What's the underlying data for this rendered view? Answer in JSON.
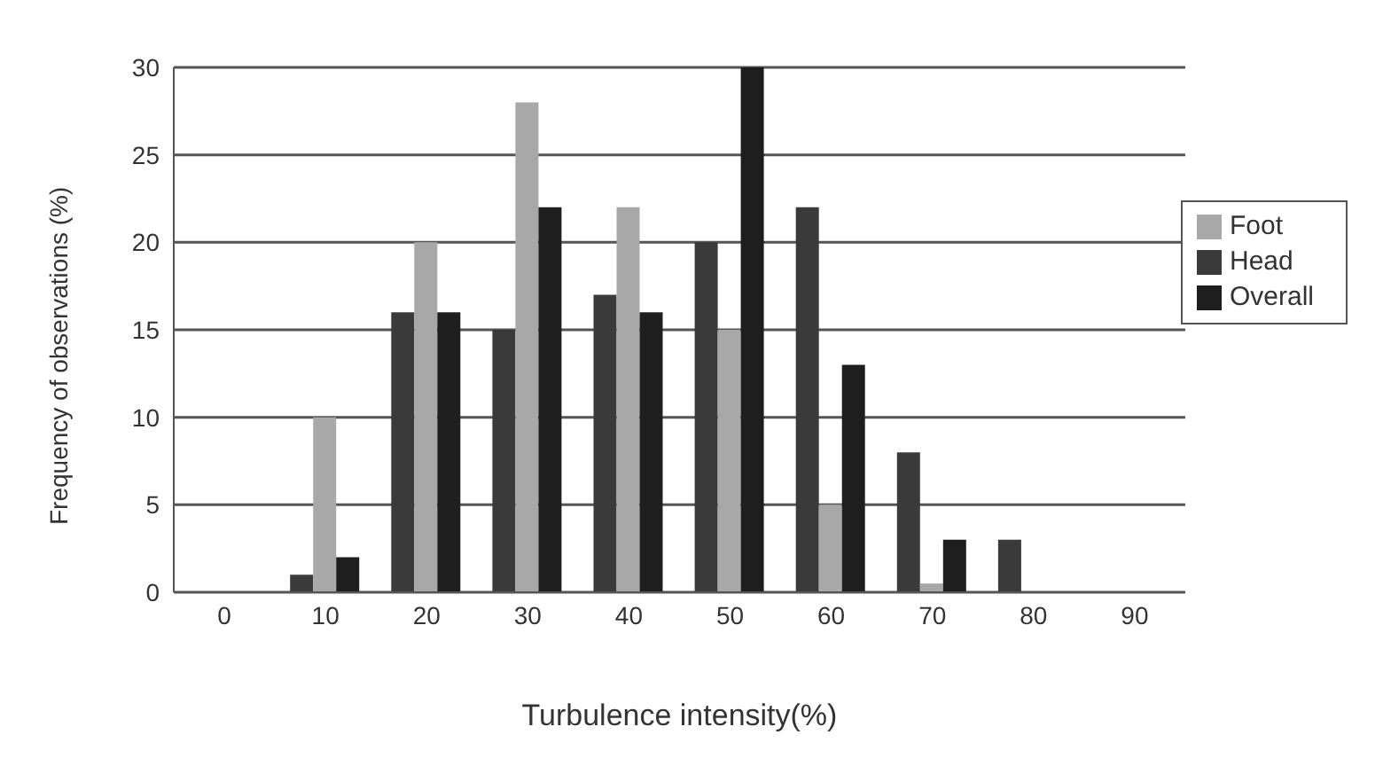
{
  "chart_data": {
    "type": "bar",
    "xlabel": "Turbulence intensity(%)",
    "ylabel": "Frequency of observations (%)",
    "categories": [
      "0",
      "10",
      "20",
      "30",
      "40",
      "50",
      "60",
      "70",
      "80",
      "90"
    ],
    "series": [
      {
        "name": "Head",
        "color": "#3a3a3a",
        "values": [
          0,
          1,
          16,
          15,
          17,
          20,
          22,
          8,
          3,
          0
        ]
      },
      {
        "name": "Foot",
        "color": "#a8a8a8",
        "values": [
          0,
          10,
          20,
          28,
          22,
          15,
          5,
          0.5,
          0,
          0
        ]
      },
      {
        "name": "Overall",
        "color": "#1e1e1e",
        "values": [
          0,
          2,
          16,
          22,
          16,
          30,
          13,
          3,
          0,
          0
        ]
      }
    ],
    "ylim": [
      0,
      30
    ],
    "yticks": [
      0,
      5,
      10,
      15,
      20,
      25,
      30
    ],
    "grid": "y",
    "legend": "top right"
  }
}
